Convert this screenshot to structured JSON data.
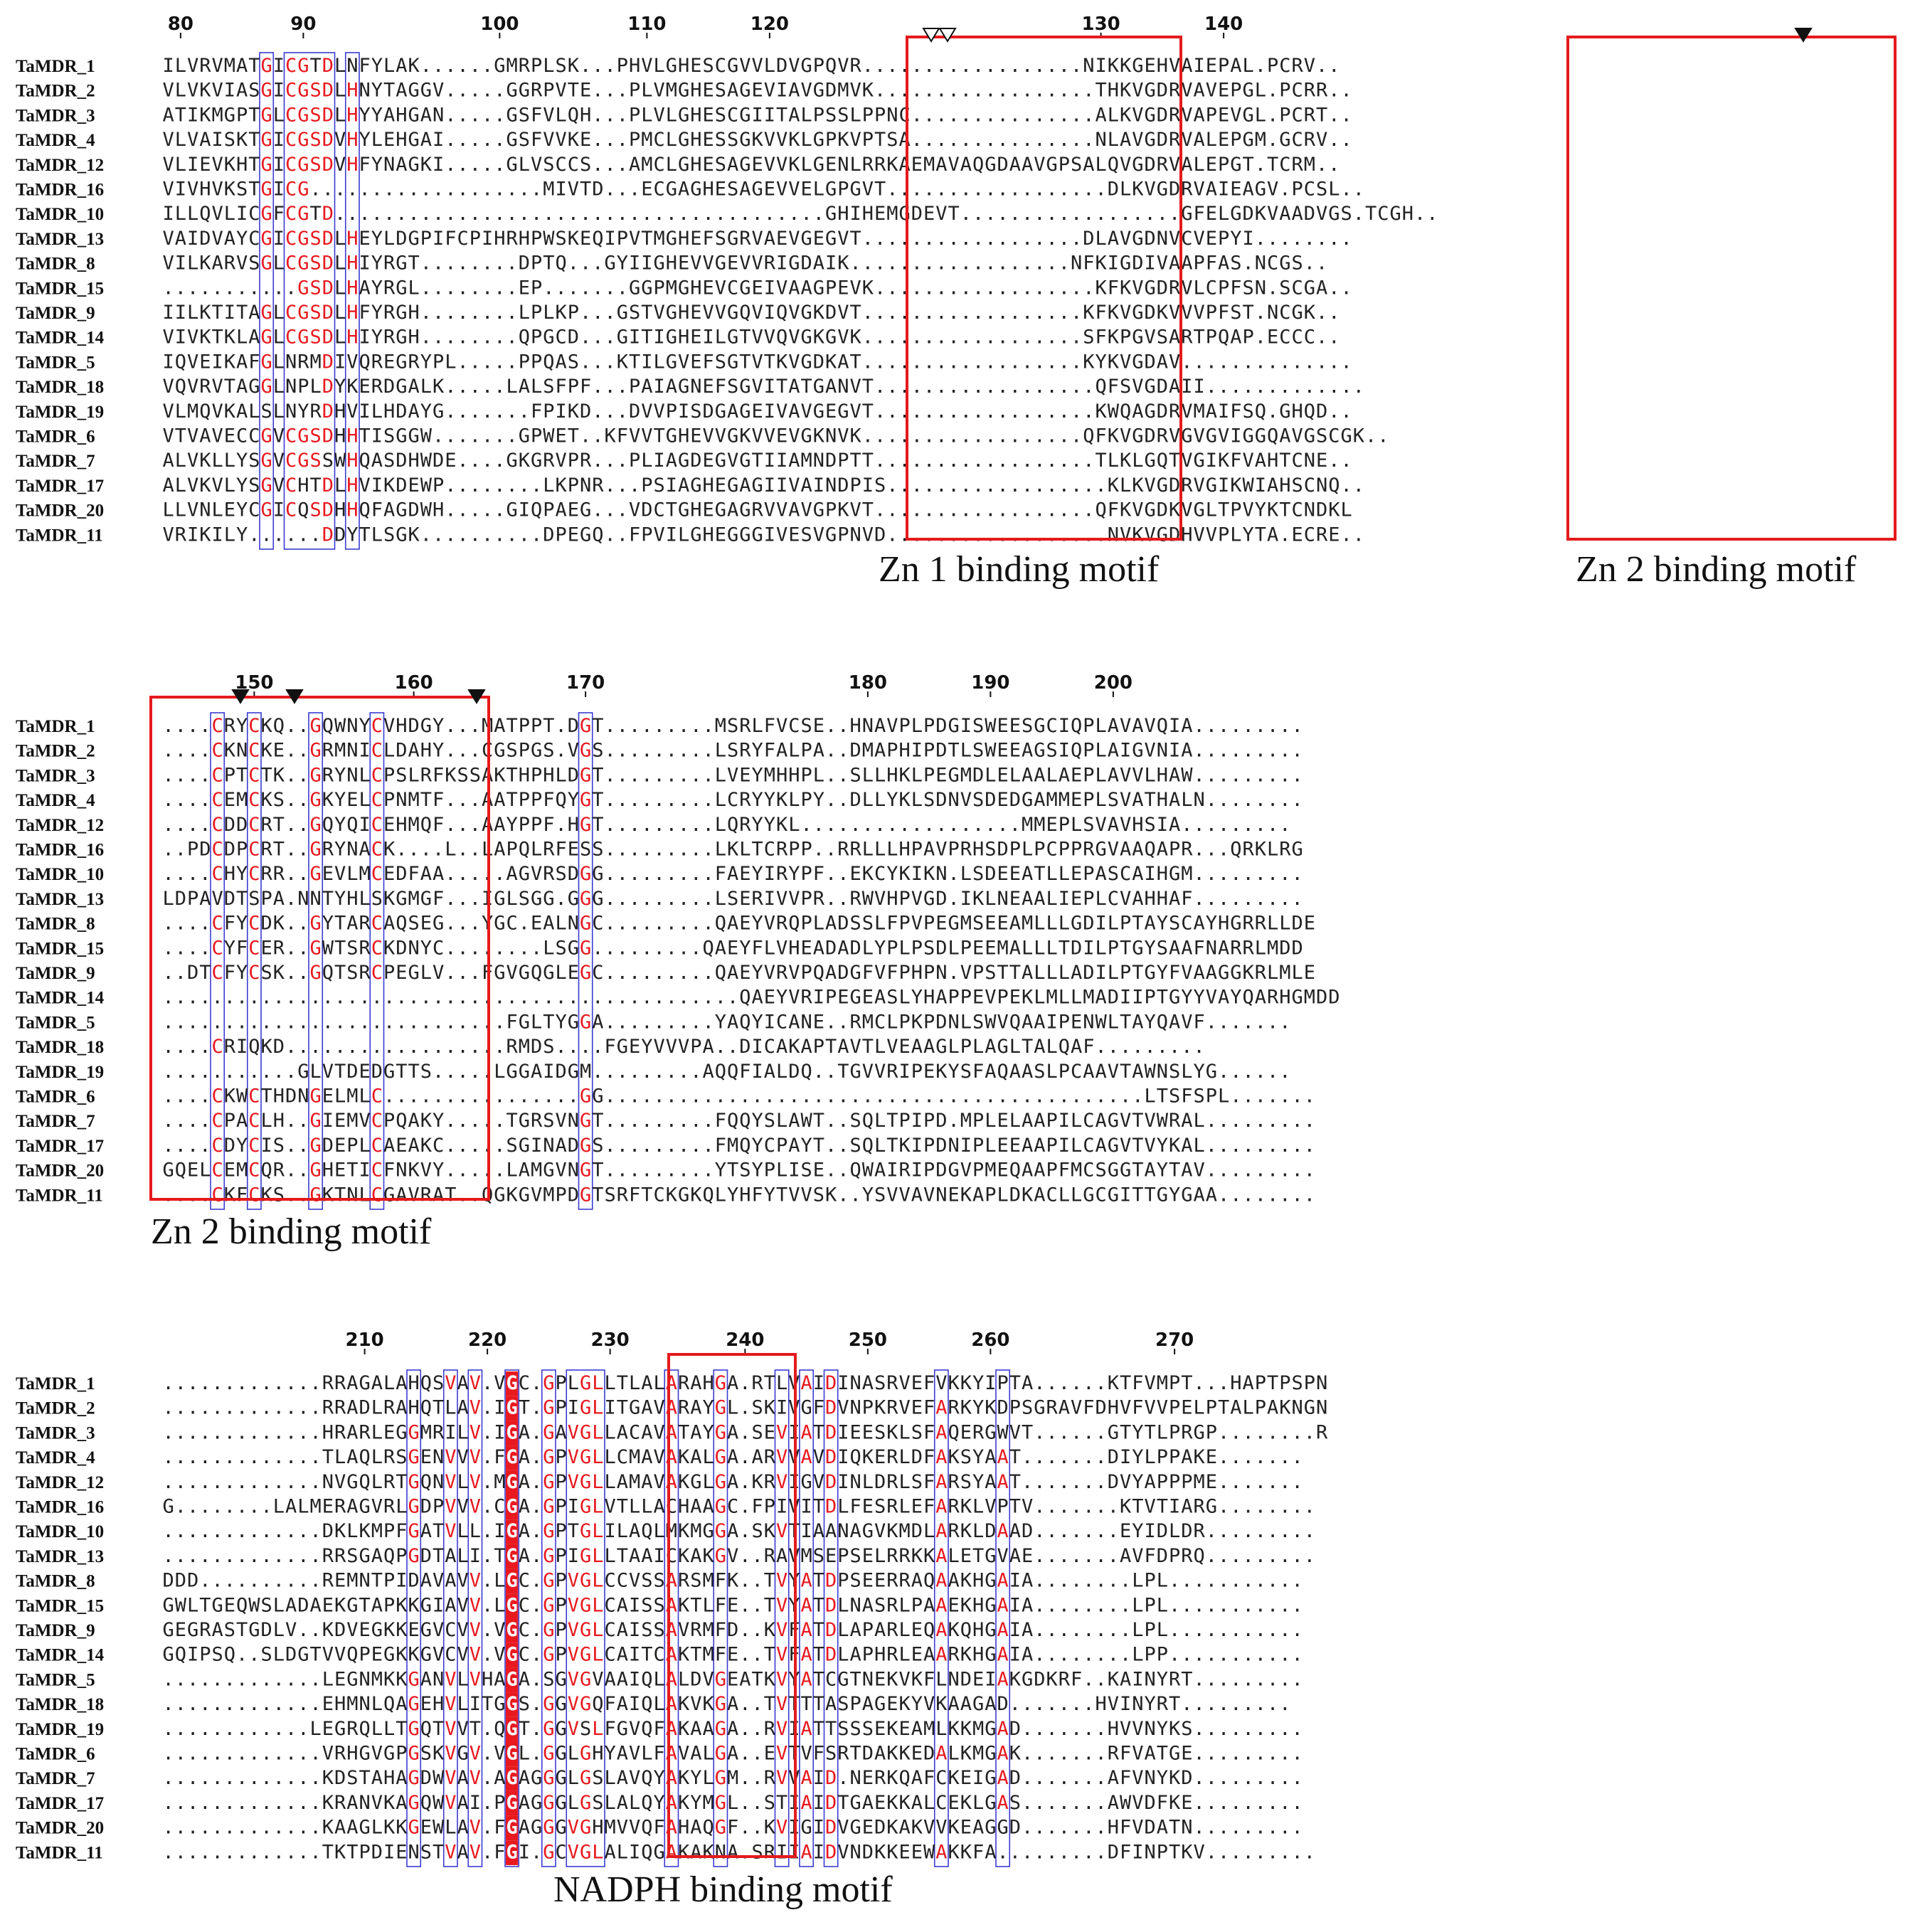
{
  "colors": {
    "conserved": "#e8191f",
    "similar_text": "#e8191f",
    "box": "#3b3bd1",
    "motif_box": "#e41a1c",
    "text": "#222222",
    "label": "#111111"
  },
  "sequence_names": [
    "TaMDR_1",
    "TaMDR_2",
    "TaMDR_3",
    "TaMDR_4",
    "TaMDR_12",
    "TaMDR_16",
    "TaMDR_10",
    "TaMDR_13",
    "TaMDR_8",
    "TaMDR_15",
    "TaMDR_9",
    "TaMDR_14",
    "TaMDR_5",
    "TaMDR_18",
    "TaMDR_19",
    "TaMDR_6",
    "TaMDR_7",
    "TaMDR_17",
    "TaMDR_20",
    "TaMDR_11"
  ],
  "blocks": [
    {
      "ruler_ticks": [
        {
          "col": 1,
          "label": "80"
        },
        {
          "col": 11,
          "label": "90"
        },
        {
          "col": 27,
          "label": "100"
        },
        {
          "col": 39,
          "label": "110"
        },
        {
          "col": 49,
          "label": "120"
        },
        {
          "col": 76,
          "label": "130"
        },
        {
          "col": 86,
          "label": "140"
        }
      ],
      "sequences": [
        "ILVRVMATGICGTDLNFYLAK......GMRPLSK...PHVLGHESCGVVLDVGPQVR..................NIKKGEHVAIEPAL.PCRV..",
        "VLVKVIASGICGSDLHNYTAGGV.....GGRPVTE...PLVMGHESAGEVIAVGDMVK..................THKVGDRVAVEPGL.PCRR..",
        "ATIKMGPTGLCGSDLHYYAHGAN.....GSFVLQH...PLVLGHESCGIITALPSSLPPNC...............ALKVGDRVAPEVGL.PCRT..",
        "VLVAISKTGICGSDVHYLEHGAI.....GSFVVKE...PMCLGHESSGKVVKLGPKVPTSA...............NLAVGDRVALEPGM.GCRV..",
        "VLIEVKHTGICGSDVHFYNAGKI.....GLVSCCS...AMCLGHESAGEVVKLGENLRRKAEMAVAQGDAAVGPSALQVGDRVALEPGT.TCRM..",
        "VIVHVKSTGICG...................MIVTD...ECGAGHESAGEVVELGPGVT..................DLKVGDRVAIEAGV.PCSL..",
        "ILLQVLICGFCGTD........................................GHIHEMGDEVT..................GFELGDKVAADVGS.TCGH..",
        "VAIDVAYCGICGSDLHEYLDGPIFCPIHRHPWSKEQIPVTMGHEFSGRVAEVGEGVT..................DLAVGDNVCVEPYI........",
        "VILKARVSGLCGSDLHIYRGT........DPTQ...GYIIGHEVVGEVVRIGDAIK..................NFKIGDIVAAPFAS.NCGS..",
        "...........GSDLHAYRGL........EP.......GGPMGHEVCGEIVAAGPEVK..................KFKVGDRVLCPFSN.SCGA..",
        "IILKTITAGLCGSDLHFYRGH........LPLKP...GSTVGHEVVGQVIQVGKDVT..................KFKVGDKVVVPFST.NCGK..",
        "VIVKTKLAGLCGSDLHIYRGH........QPGCD...GITIGHEILGTVVQVGKGVK..................SFKPGVSARTPQAP.ECCC..",
        "IQVEIKAFGLNRMDIVQREGRYPL.....PPQAS...KTILGVEFSGTVTKVGDKAT..................KYKVGDAV..............",
        "VQVRVTAGGLNPLDYKERDGALK.....LALSFPF...PAIAGNEFSGVITATGANVT..................QFSVGDAII.............",
        "VLMQVKALSLNYRDHVILHDAYG.......FPIKD...DVVPISDGAGEIVAVGEGVT..................KWQAGDRVMAIFSQ.GHQD..",
        "VTVAVECCGVCGSDHHTISGGW.......GPWET..KFVVTGHEVVGKVVEVGKNVK..................QFKVGDRVGVGVIGGQAVGSCGK..",
        "ALVKLLYSGVCGSSWHQASDHWDE....GKGRVPR...PLIAGDEGVGTIIAMNDPTT..................TLKLGQTVGIKFVAHTCNE..",
        "ALVKVLYSGVCHTDLHVIKDEWP........LKPNR...PSIAGHEGAGIIVAINDPIS..................KLKVGDRVGIKWIAHSCNQ..",
        "LLVNLEYCGICQSDHHQFAGDWH.....GIQPAEG...VDCTGHEGAGRVVAVGPKVT..................QFKVGDKVGLTPVYKTCNDKL",
        "VRIKILY......DDYTLSGK..........DPEGQ..FPVILGHEGGGIVESVGPNVD..................NVKVGDHVVPLYTA.ECRE.."
      ],
      "motif_labels": [
        "Zn 1 binding motif",
        "Zn 2 binding motif"
      ]
    },
    {
      "ruler_ticks": [
        {
          "col": 7,
          "label": "150"
        },
        {
          "col": 20,
          "label": "160"
        },
        {
          "col": 34,
          "label": "170"
        },
        {
          "col": 57,
          "label": "180"
        },
        {
          "col": 67,
          "label": "190"
        },
        {
          "col": 77,
          "label": "200"
        }
      ],
      "sequences": [
        "....CRYCKQ..GQWNYCVHDGY...MATPPT.DGT.........MSRLFVCSE..HNAVPLPDGISWEESGCIQPLAVAVQIA.........",
        "....CKNCKE..GRMNICLDAHY...CGSPGS.VGS.........LSRYFALPA..DMAPHIPDTLSWEEAGSIQPLAIGVNIA.........",
        "....CPTCTK..GRYNLCPSLRFKSSAKTHPHLDGT.........LVEYMHHPL..SLLHKLPEGMDLELAALAEPLAVVLHAW.........",
        "....CEMCKS..GKYELCPNMTF...AATPPFQYGT.........LCRYYKLPY..DLLYKLSDNVSDEDGAMMEPLSVATHALN........",
        "....CDDCRT..GQYQICEHMQF...AAYPPF.HGT.........LQRYYKL..................MMEPLSVAVHSIA.........",
        "..PDCDPCRT..GRYNACK....L..LAPQLRFESS.........LKLTCRPP..RRLLLHPAVPRHSDPLPCPPRGVAAQAPR...QRKLRG",
        "....CHYCRR..GEVLMCEDFAA.....AGVRSDGG.........FAEYIRYPF..EKCYKIKN.LSDEEATLLEPASCAIHGM.........",
        "LDPAVDTSPA.NNTYHLSKGMGF...IGLSGG.GGG.........LSERIVVPR..RWVHPVGD.IKLNEAALIEPLCVAHHAF.........",
        "....CFYCDK..GYTARCAQSEG...YGC.EALNGC.........QAEYVRQPLADSSLFPVPEGMSEEAMLLLGDILPTAYSCAYHGRRLLDE",
        "....CYFCER..GWTSRCKDNYC........LSGG.........QAEYFLVHEADADLYPLPSDLPEEMALLLTDILPTGYSAAFNARRLMDD",
        "..DTCFYCSK..GQTSRCPEGLV...FGVGQGLEGC.........QAEYVRVPQADGFVFPHPN.VPSTTALLLADILPTGYFVAAGGKRLMLE",
        "...............................................QAEYVRIPEGEASLYHAPPEVPEKLMLLMADIIPTGYYVAYQARHGMDD",
        "............................FGLTYGGA.........YAQYICANE..RMCLPKPDNLSWVQAAIPENWLTAYQAVF.......",
        "....CRIQKD..................RMDS....FGEYVVVPA..DICAKAPTAVTLVEAAGLPLAGLTALQAF.........",
        "...........GLVTDEDGTTS.....LGGAIDGM.........AQQFIALDQ..TGVVRIPEKYSFAQAASLPCAAVTAWNSLYG......",
        "....CKWCTHDNGELMLC................GG............................................LTSFSPL.......",
        "....CPACLH..GIEMVCPQAKY.....TGRSVNGT.........FQQYSLAWT..SQLTPIPD.MPLELAAPILCAGVTVWRAL.........",
        "....CDYCIS..GDEPLCAEAKC.....SGINADGS.........FMQYCPAYT..SQLTKIPDNIPLEEAAPILCAGVTVYKAL.........",
        "GQELCEMCQR..GHETICFNKVY.....LAMGVNGT.........YTSYPLISE..QWAIRIPDGVPMEQAAPFMCSGGTAYTAV.........",
        "....CKFCKS..GKTNLCGAVRAT..QGKGVMPDGTSRFTCKGKQLYHFYTVVSK..YSVVAVNEKAPLDKACLLGCGITTGYGAA........"
      ],
      "motif_labels": [
        "Zn 2 binding motif"
      ]
    },
    {
      "ruler_ticks": [
        {
          "col": 16,
          "label": "210"
        },
        {
          "col": 26,
          "label": "220"
        },
        {
          "col": 36,
          "label": "230"
        },
        {
          "col": 47,
          "label": "240"
        },
        {
          "col": 57,
          "label": "250"
        },
        {
          "col": 67,
          "label": "260"
        },
        {
          "col": 82,
          "label": "270"
        }
      ],
      "sequences": [
        ".............RRAGALAHQSVAV.VGC.GPLGLLTLALARAHGA.RTLVAIDINASRVEFVKKYIPTA......KTFVMPT...HAPTPSPN",
        ".............RRADLRAHQTLAV.IGT.GPIGLITGAVARAYGL.SKIVGFDVNPKRVEFARKYKDPSGRAVFDHVFVVPELPTALPAKNGN",
        ".............HRARLEGGMRILV.IGA.GAVGLLACAVATAYGA.SEVIATDIEESKLSFAQERGWVT......GTYTLPRGP........R",
        ".............TLAQLRSGENVVV.FGA.GPVGLLCMAVAKALGA.ARVVAVDIQKERLDFAKSYAAT.......DIYLPPAKE.......",
        ".............NVGQLRTGQNVLV.MGA.GPVGLLAMAVAKGLGA.KRVIGVDINLDRLSFARSYAAT.......DVYAPPPME.......",
        "G........LALMERAGVRLGDPVVV.CGA.GPIGLVTLLACHAAGC.FPIVITDLFESRLEFARKLVPTV.......KTVTIARG........",
        ".............DKLKMPFGATVLL.IGA.GPTGLILAQLMKMGGA.SKVTIAANAGVKMDLARKLDAAD.......EYIDLDR.........",
        ".............RRSGAQPGDTALI.TGA.GPIGLLTAAICKAKGV..RAVMSEPSELRRKKALETGVAE.......AVFDPRQ.........",
        "DDD..........REMNTPIDAVAVV.LGC.GPVGLCCVSSARSMFK..TVYATDPSEERRAQAAKHGAIA........LPL...........",
        "GWLTGEQWSLADAEKGTAPKKGIAVV.LGC.GPVGLCAISSAKTLFE..TVYATDLNASRLPAAEKHGAIA........LPL...........",
        "GEGRASTGDLV..KDVEGKKEGVCVV.VGC.GPVGLCAISSAVRMFD..KVFATDLAPARLEQAKQHGAIA........LPL...........",
        "GQIPSQ..SLDGTVVQPEGKKGVCVV.VGC.GPVGLCAITCAKTMFE..TVFATDLAPHRLEAARKHGAIA........LPP...........",
        ".............LEGNMKKGANVLVHAGA.SGVGVAAIQLALDVGEATKVYATCGTNEKVKFLNDEIAKGDKRF..KAINYRT.........",
        ".............EHMNLQAGEHVLITGGS.GGVGQFAIQLAKVKGA..TVTTTASPAGEKYVKAAGAD.......HVINYRT.........",
        "............LEGRQLLTGQTVVT.QGT.GGVSLFGVQFAKAAGA..RVIATTSSSEKEAMLKKMGAD.......HVVNYKS.........",
        ".............VRHGVGPGSKVGV.VGL.GGLGHYAVLFAVALGA..EVTVFSRTDAKKEDALKMGAK.......RFVATGE.........",
        ".............KDSTAHAGDWVAV.AGAGGGLGSLAVQYAKYLGM..RVVAID.NERKQAFCKEIGAD.......AFVNYKD.........",
        ".............KRANVKAGQWVAI.PGAGGGLGSLALQYAKYMGL..STIAIDTGAEKKALCEKLGAS.......AWVDFKE.........",
        ".............KAAGLKKGEWLAV.FGAGGGVGHMVVQFAHAQGF..KVIGIDVGEDKAKVVKEAGGD.......HFVDATN.........",
        ".............TKTPDIENSTVAV.FGI.GCVGLALIQGAKAKNA.SRIIAIDVNDKKEEWAKKFA.........DFINPTKV........."
      ],
      "motif_labels": [
        "NADPH binding motif"
      ]
    }
  ]
}
